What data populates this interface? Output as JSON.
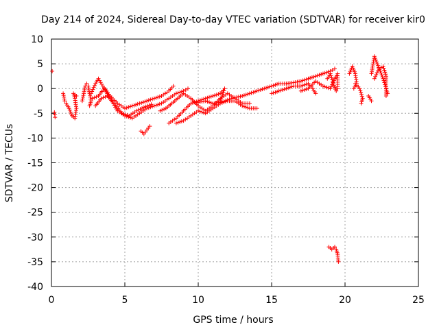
{
  "chart_data": {
    "type": "scatter",
    "title": "Day 214 of 2024, Sidereal Day-to-day VTEC variation (SDTVAR) for receiver kir0",
    "xlabel": "GPS time / hours",
    "ylabel": "SDTVAR / TECUs",
    "xlim": [
      0,
      25
    ],
    "ylim": [
      -40,
      10
    ],
    "x_ticks": [
      0,
      5,
      10,
      15,
      20,
      25
    ],
    "y_ticks": [
      -40,
      -35,
      -30,
      -25,
      -20,
      -15,
      -10,
      -5,
      0,
      5,
      10
    ],
    "grid": true,
    "marker": "+",
    "colors": {
      "series": "#ff0000",
      "grid": "#a0a0a0",
      "axis": "#000000"
    },
    "series": [
      {
        "name": "SDTVAR",
        "segments": [
          {
            "points": [
              [
                0.05,
                3.5
              ]
            ]
          },
          {
            "points": [
              [
                0.2,
                -4.8
              ],
              [
                0.25,
                -5.8
              ]
            ]
          },
          {
            "points": [
              [
                0.8,
                -1.0
              ],
              [
                0.9,
                -2.5
              ],
              [
                1.0,
                -3.0
              ],
              [
                1.2,
                -4.0
              ],
              [
                1.4,
                -5.5
              ],
              [
                1.6,
                -6.0
              ],
              [
                1.7,
                -4.0
              ],
              [
                1.6,
                -2.0
              ],
              [
                1.5,
                -1.0
              ],
              [
                1.7,
                -1.5
              ]
            ]
          },
          {
            "points": [
              [
                2.1,
                -2.5
              ],
              [
                2.2,
                -1.0
              ],
              [
                2.3,
                0.5
              ],
              [
                2.4,
                1.0
              ],
              [
                2.5,
                0.5
              ],
              [
                2.6,
                -1.0
              ],
              [
                2.7,
                -2.5
              ],
              [
                2.6,
                -3.5
              ]
            ]
          },
          {
            "points": [
              [
                2.7,
                -1.0
              ],
              [
                3.0,
                1.0
              ],
              [
                3.2,
                2.0
              ],
              [
                3.5,
                0.5
              ],
              [
                4.0,
                -1.5
              ],
              [
                4.5,
                -3.0
              ],
              [
                5.0,
                -4.0
              ],
              [
                5.5,
                -3.5
              ],
              [
                6.0,
                -3.0
              ],
              [
                6.5,
                -2.5
              ],
              [
                7.0,
                -2.0
              ],
              [
                7.5,
                -1.5
              ],
              [
                8.0,
                -0.5
              ],
              [
                8.3,
                0.5
              ]
            ]
          },
          {
            "points": [
              [
                2.8,
                -2.0
              ],
              [
                3.2,
                -1.5
              ],
              [
                3.6,
                0.0
              ],
              [
                4.0,
                -2.0
              ],
              [
                4.5,
                -4.5
              ],
              [
                5.0,
                -5.5
              ],
              [
                5.5,
                -6.0
              ],
              [
                6.0,
                -5.0
              ],
              [
                6.5,
                -4.0
              ],
              [
                7.0,
                -3.5
              ],
              [
                7.5,
                -3.0
              ],
              [
                8.0,
                -2.0
              ],
              [
                8.5,
                -1.0
              ],
              [
                9.0,
                -0.5
              ],
              [
                9.3,
                0.0
              ]
            ]
          },
          {
            "points": [
              [
                3.0,
                -3.5
              ],
              [
                3.4,
                -2.0
              ],
              [
                3.8,
                -1.5
              ],
              [
                4.3,
                -3.0
              ],
              [
                4.8,
                -5.0
              ],
              [
                5.3,
                -5.5
              ],
              [
                5.8,
                -4.5
              ],
              [
                6.3,
                -3.8
              ],
              [
                6.8,
                -3.2
              ]
            ]
          },
          {
            "points": [
              [
                6.1,
                -8.6
              ],
              [
                6.3,
                -9.2
              ],
              [
                6.5,
                -8.4
              ],
              [
                6.7,
                -7.6
              ]
            ]
          },
          {
            "points": [
              [
                7.4,
                -4.5
              ],
              [
                7.8,
                -4.0
              ],
              [
                8.2,
                -3.0
              ],
              [
                8.6,
                -2.0
              ],
              [
                9.0,
                -1.0
              ],
              [
                9.5,
                -2.0
              ],
              [
                10.0,
                -3.5
              ],
              [
                10.5,
                -4.5
              ],
              [
                11.0,
                -3.5
              ],
              [
                11.5,
                -2.0
              ],
              [
                12.0,
                -1.0
              ],
              [
                12.5,
                -2.0
              ],
              [
                13.0,
                -3.0
              ],
              [
                13.5,
                -3.0
              ]
            ]
          },
          {
            "points": [
              [
                8.0,
                -7.0
              ],
              [
                8.5,
                -6.0
              ],
              [
                9.0,
                -4.5
              ],
              [
                9.5,
                -3.0
              ],
              [
                10.0,
                -2.5
              ],
              [
                10.5,
                -2.0
              ],
              [
                11.0,
                -1.5
              ],
              [
                11.5,
                -1.0
              ],
              [
                11.8,
                0.0
              ],
              [
                11.5,
                -2.5
              ]
            ]
          },
          {
            "points": [
              [
                8.5,
                -7.0
              ],
              [
                9.0,
                -6.5
              ],
              [
                9.5,
                -5.5
              ],
              [
                10.0,
                -4.5
              ],
              [
                10.5,
                -5.0
              ],
              [
                11.0,
                -4.0
              ],
              [
                11.5,
                -3.0
              ],
              [
                12.0,
                -2.5
              ],
              [
                12.5,
                -2.5
              ],
              [
                13.0,
                -3.5
              ],
              [
                13.5,
                -4.0
              ],
              [
                14.0,
                -4.0
              ]
            ]
          },
          {
            "points": [
              [
                10.0,
                -2.8
              ],
              [
                10.5,
                -2.5
              ],
              [
                11.0,
                -3.0
              ],
              [
                11.5,
                -2.8
              ],
              [
                12.0,
                -2.3
              ],
              [
                12.5,
                -1.8
              ],
              [
                13.0,
                -1.5
              ],
              [
                13.5,
                -1.0
              ],
              [
                14.0,
                -0.5
              ],
              [
                14.5,
                0.0
              ],
              [
                15.0,
                0.5
              ],
              [
                15.5,
                1.0
              ],
              [
                16.0,
                1.0
              ],
              [
                16.5,
                1.2
              ],
              [
                17.0,
                1.5
              ],
              [
                17.5,
                2.0
              ],
              [
                18.0,
                2.5
              ],
              [
                18.5,
                3.0
              ],
              [
                19.0,
                3.5
              ],
              [
                19.3,
                4.0
              ]
            ]
          },
          {
            "points": [
              [
                15.0,
                -1.0
              ],
              [
                15.5,
                -0.5
              ],
              [
                16.0,
                0.0
              ],
              [
                16.5,
                0.5
              ],
              [
                17.0,
                0.5
              ],
              [
                17.5,
                1.0
              ],
              [
                17.8,
                0.0
              ],
              [
                18.0,
                -1.0
              ]
            ]
          },
          {
            "points": [
              [
                17.0,
                -0.5
              ],
              [
                17.5,
                0.0
              ],
              [
                18.0,
                1.5
              ],
              [
                18.5,
                0.5
              ],
              [
                19.0,
                0.0
              ],
              [
                19.3,
                2.0
              ],
              [
                19.5,
                3.0
              ],
              [
                19.5,
                0.0
              ]
            ]
          },
          {
            "points": [
              [
                18.8,
                2.0
              ],
              [
                19.0,
                3.0
              ],
              [
                19.2,
                1.0
              ],
              [
                19.4,
                -0.5
              ]
            ]
          },
          {
            "points": [
              [
                20.3,
                3.0
              ],
              [
                20.5,
                4.5
              ],
              [
                20.7,
                3.0
              ],
              [
                20.8,
                1.0
              ],
              [
                20.6,
                0.0
              ]
            ]
          },
          {
            "points": [
              [
                20.7,
                1.0
              ],
              [
                21.0,
                0.0
              ],
              [
                21.2,
                -2.0
              ],
              [
                21.1,
                -3.0
              ]
            ]
          },
          {
            "points": [
              [
                21.6,
                -1.5
              ],
              [
                21.8,
                -2.5
              ]
            ]
          },
          {
            "points": [
              [
                21.8,
                3.0
              ],
              [
                22.0,
                6.5
              ],
              [
                22.2,
                5.0
              ],
              [
                22.4,
                3.5
              ],
              [
                22.6,
                2.0
              ],
              [
                22.8,
                0.0
              ],
              [
                22.9,
                -1.0
              ]
            ]
          },
          {
            "points": [
              [
                22.0,
                2.0
              ],
              [
                22.3,
                4.0
              ],
              [
                22.6,
                4.5
              ],
              [
                22.8,
                2.5
              ],
              [
                22.8,
                -1.5
              ]
            ]
          },
          {
            "points": [
              [
                18.9,
                -32.0
              ],
              [
                19.1,
                -32.5
              ],
              [
                19.3,
                -32.0
              ],
              [
                19.4,
                -32.5
              ],
              [
                19.5,
                -33.5
              ],
              [
                19.55,
                -35.0
              ]
            ]
          }
        ]
      }
    ]
  }
}
